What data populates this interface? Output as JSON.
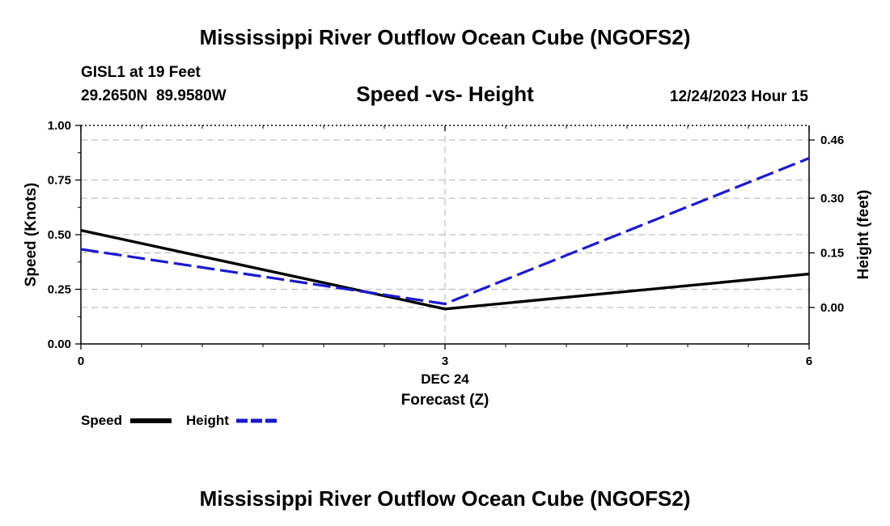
{
  "page": {
    "title": "Mississippi River Outflow Ocean Cube (NGOFS2)",
    "footer_title": "Mississippi River Outflow Ocean Cube (NGOFS2)"
  },
  "station": {
    "name": "GISL1 at 19 Feet",
    "coords": "29.2650N  89.9580W",
    "datetime": "12/24/2023 Hour 15"
  },
  "chart_data": {
    "type": "line",
    "title": "Speed -vs- Height",
    "xlabel": "Forecast (Z)",
    "x_date_label": "DEC 24",
    "ylabel_left": "Speed (Knots)",
    "ylabel_right": "Height (feet)",
    "x": [
      0,
      3,
      6
    ],
    "x_ticks": [
      "0",
      "3",
      "6"
    ],
    "xlim": [
      0,
      6
    ],
    "ylim_left": [
      0,
      1
    ],
    "left_ticks": [
      "0.00",
      "0.25",
      "0.50",
      "0.75",
      "1.00"
    ],
    "left_tick_values": [
      0,
      0.25,
      0.5,
      0.75,
      1.0
    ],
    "ylim_right": [
      -0.1,
      0.5
    ],
    "right_ticks": [
      "0.00",
      "0.15",
      "0.30",
      "0.46"
    ],
    "right_tick_values": [
      0.0,
      0.15,
      0.3,
      0.46
    ],
    "grid": true,
    "series": [
      {
        "name": "Speed",
        "axis": "left",
        "style": "solid",
        "color": "#000000",
        "values": [
          0.52,
          0.16,
          0.32
        ]
      },
      {
        "name": "Height",
        "axis": "right",
        "style": "dashed",
        "color": "#1a1acc",
        "values": [
          0.16,
          0.01,
          0.41
        ]
      }
    ],
    "legend": [
      {
        "label": "Speed",
        "color": "#000000",
        "style": "solid"
      },
      {
        "label": "Height",
        "color": "#1a1acc",
        "style": "dashed"
      }
    ],
    "legend_position": "bottom-left"
  }
}
